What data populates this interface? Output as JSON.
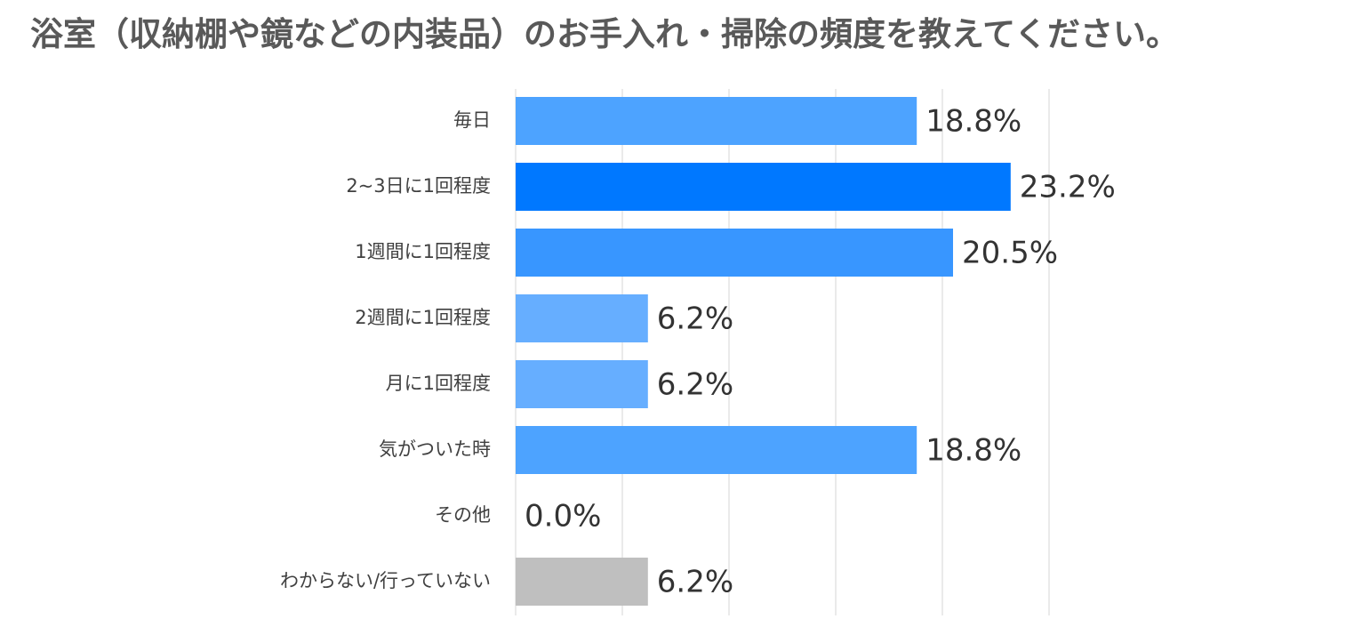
{
  "chart_data": {
    "type": "bar",
    "orientation": "horizontal",
    "title": "浴室（収納棚や鏡などの内装品）のお手入れ・掃除の頻度を教えてください。",
    "categories": [
      "毎日",
      "2~3日に1回程度",
      "1週間に1回程度",
      "2週間に1回程度",
      "月に1回程度",
      "気がついた時",
      "その他",
      "わからない/行っていない"
    ],
    "values": [
      18.8,
      23.2,
      20.5,
      6.2,
      6.2,
      18.8,
      0.0,
      6.2
    ],
    "value_labels": [
      "18.8%",
      "23.2%",
      "20.5%",
      "6.2%",
      "6.2%",
      "18.8%",
      "0.0%",
      "6.2%"
    ],
    "bar_colors": [
      "#4DA3FF",
      "#0078FF",
      "#3896FF",
      "#66AEFF",
      "#66AEFF",
      "#4DA3FF",
      "#66AEFF",
      "#BFBFBF"
    ],
    "xlim": [
      0,
      25
    ],
    "grid": true,
    "xlabel": "",
    "ylabel": ""
  }
}
